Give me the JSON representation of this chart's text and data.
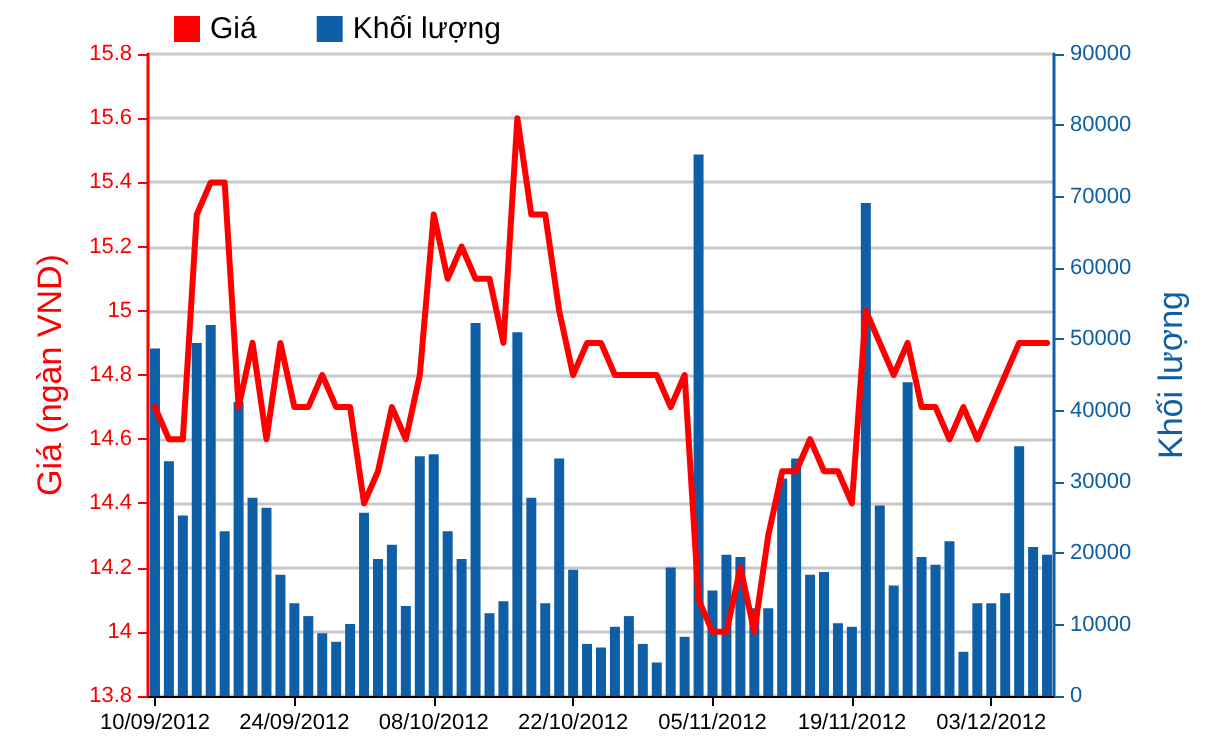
{
  "chart_data": {
    "type": "bar",
    "categories": [
      "10/09/2012",
      null,
      null,
      null,
      null,
      null,
      null,
      null,
      null,
      null,
      "24/09/2012",
      null,
      null,
      null,
      null,
      null,
      null,
      null,
      null,
      null,
      "08/10/2012",
      null,
      null,
      null,
      null,
      null,
      null,
      null,
      null,
      null,
      "22/10/2012",
      null,
      null,
      null,
      null,
      null,
      null,
      null,
      null,
      null,
      "05/11/2012",
      null,
      null,
      null,
      null,
      null,
      null,
      null,
      null,
      null,
      "19/11/2012",
      null,
      null,
      null,
      null,
      null,
      null,
      null,
      null,
      null,
      "03/12/2012",
      null,
      null,
      null,
      null
    ],
    "ylabel": "Giá (ngàn VND)",
    "y2label": "Khối lượng",
    "series": [
      {
        "name": "Giá",
        "type": "line",
        "color": "#ff0000",
        "values": [
          14.7,
          14.6,
          14.6,
          15.3,
          15.4,
          15.4,
          14.7,
          14.9,
          14.6,
          14.9,
          14.7,
          14.7,
          14.8,
          14.7,
          14.7,
          14.4,
          14.5,
          14.7,
          14.6,
          14.8,
          15.3,
          15.1,
          15.2,
          15.1,
          15.1,
          14.9,
          15.6,
          15.3,
          15.3,
          15.0,
          14.8,
          14.9,
          14.9,
          14.8,
          14.8,
          14.8,
          14.8,
          14.7,
          14.8,
          14.1,
          14.0,
          14.0,
          14.2,
          14.0,
          14.3,
          14.5,
          14.5,
          14.6,
          14.5,
          14.5,
          14.4,
          15.0,
          14.9,
          14.8,
          14.9,
          14.7,
          14.7,
          14.6,
          14.7,
          14.6,
          14.7,
          14.8,
          14.9,
          14.9,
          14.9
        ]
      },
      {
        "name": "Khối lượng",
        "axis": "y2",
        "color": "#0f5fa6",
        "values": [
          48700,
          32900,
          25300,
          49500,
          52000,
          23100,
          41200,
          27800,
          26400,
          17000,
          13000,
          11200,
          8800,
          7600,
          10100,
          25700,
          19200,
          21200,
          12600,
          33600,
          33900,
          23100,
          19200,
          52300,
          11600,
          13300,
          51000,
          27800,
          13000,
          33300,
          17700,
          7300,
          6800,
          9700,
          11200,
          7300,
          4700,
          18000,
          8300,
          75900,
          14800,
          19800,
          19500,
          12300,
          12300,
          30500,
          33300,
          17000,
          17400,
          10200,
          9700,
          69100,
          26700,
          15500,
          44000,
          19500,
          18400,
          21700,
          6200,
          13000,
          13000,
          14400,
          35000,
          20900,
          19800
        ]
      }
    ],
    "ylim": [
      13.8,
      15.8
    ],
    "yticks": [
      13.8,
      14,
      14.2,
      14.4,
      14.6,
      14.8,
      15,
      15.2,
      15.4,
      15.6,
      15.8
    ],
    "y2lim": [
      0,
      90000
    ],
    "y2ticks": [
      0,
      10000,
      20000,
      30000,
      40000,
      50000,
      60000,
      70000,
      80000,
      90000
    ],
    "grid": "y",
    "legend": "top left",
    "line_style": "solid",
    "marker": "none"
  }
}
